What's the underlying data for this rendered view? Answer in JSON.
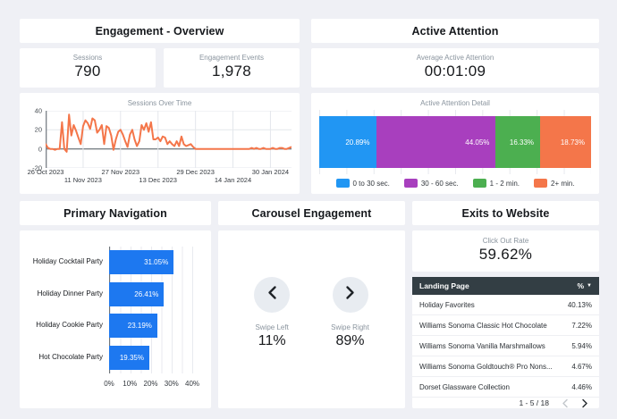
{
  "engagement_overview": {
    "title": "Engagement - Overview",
    "kpis": [
      {
        "label": "Sessions",
        "value": "790"
      },
      {
        "label": "Engagement Events",
        "value": "1,978"
      }
    ]
  },
  "active_attention": {
    "title": "Active Attention",
    "kpi": {
      "label": "Average Active Attention",
      "value": "00:01:09"
    }
  },
  "primary_navigation": {
    "title": "Primary Navigation"
  },
  "carousel": {
    "title": "Carousel Engagement",
    "left": {
      "label": "Swipe Left",
      "value": "11%"
    },
    "right": {
      "label": "Swipe Right",
      "value": "89%"
    }
  },
  "exits": {
    "title": "Exits to Website",
    "kpi": {
      "label": "Click Out Rate",
      "value": "59.62%"
    },
    "table": {
      "col_page": "Landing Page",
      "col_pct": "%",
      "sort_indicator": "▼",
      "rows": [
        [
          "Holiday Favorites",
          "40.13%"
        ],
        [
          "Williams Sonoma Classic Hot Chocolate",
          "7.22%"
        ],
        [
          "Williams Sonoma Vanilla Marshmallows",
          "5.94%"
        ],
        [
          "Williams Sonoma Goldtouch® Pro Nons...",
          "4.67%"
        ],
        [
          "Dorset Glassware Collection",
          "4.46%"
        ]
      ],
      "pagination": "1 - 5 / 18"
    }
  },
  "chart_data": [
    {
      "id": "sessions_over_time",
      "type": "line",
      "title": "Sessions Over Time",
      "color": "#F4764A",
      "ylim": [
        -20,
        40
      ],
      "yticks": [
        40,
        20,
        0,
        -20
      ],
      "xticks": [
        {
          "day": 0,
          "label": "26 Oct 2023",
          "row": 1
        },
        {
          "day": 16,
          "label": "11 Nov 2023",
          "row": 2
        },
        {
          "day": 32,
          "label": "27 Nov 2023",
          "row": 1
        },
        {
          "day": 48,
          "label": "13 Dec 2023",
          "row": 2
        },
        {
          "day": 64,
          "label": "29 Dec 2023",
          "row": 1
        },
        {
          "day": 80,
          "label": "14 Jan 2024",
          "row": 2
        },
        {
          "day": 96,
          "label": "30 Jan 2024",
          "row": 1
        }
      ],
      "values": [
        5,
        1,
        0,
        0,
        -1,
        0,
        0,
        28,
        0,
        -3,
        36,
        14,
        25,
        19,
        12,
        5,
        24,
        30,
        27,
        21,
        32,
        30,
        17,
        20,
        25,
        5,
        24,
        22,
        14,
        -1,
        10,
        18,
        20,
        15,
        8,
        2,
        15,
        20,
        10,
        3,
        8,
        25,
        20,
        27,
        18,
        28,
        10,
        10,
        12,
        8,
        13,
        12,
        5,
        8,
        5,
        3,
        8,
        3,
        13,
        5,
        3,
        4,
        5,
        2,
        0,
        0,
        0,
        0,
        0,
        0,
        0,
        0,
        0,
        0,
        0,
        0,
        0,
        0,
        0,
        0,
        0,
        0,
        0,
        0,
        0,
        0,
        0,
        0,
        1,
        0,
        1,
        0,
        0,
        1,
        0,
        0,
        0,
        1,
        0,
        0,
        1,
        1,
        0,
        0,
        1,
        2
      ]
    },
    {
      "id": "active_attention_detail",
      "type": "stacked_bar",
      "title": "Active Attention Detail",
      "segments": [
        {
          "label": "0 to 30 sec.",
          "value": 20.89,
          "pct_label": "20.89%",
          "color": "#2196F3"
        },
        {
          "label": "30 - 60 sec.",
          "value": 44.05,
          "pct_label": "44.05%",
          "color": "#A83FBE"
        },
        {
          "label": "1 - 2 min.",
          "value": 16.33,
          "pct_label": "16.33%",
          "color": "#4CAF50"
        },
        {
          "label": "2+ min.",
          "value": 18.73,
          "pct_label": "18.73%",
          "color": "#F4764A"
        }
      ]
    },
    {
      "id": "primary_navigation_bars",
      "type": "bar",
      "orientation": "horizontal",
      "color": "#1D78F0",
      "categories": [
        "Holiday Cocktail Party",
        "Holiday Dinner Party",
        "Holiday Cookie Party",
        "Hot Chocolate Party"
      ],
      "values": [
        31.05,
        26.41,
        23.19,
        19.35
      ],
      "value_labels": [
        "31.05%",
        "26.41%",
        "23.19%",
        "19.35%"
      ],
      "xmax": 43,
      "xticks": [
        {
          "value": 0,
          "label": "0%"
        },
        {
          "value": 10,
          "label": "10%"
        },
        {
          "value": 20,
          "label": "20%"
        },
        {
          "value": 30,
          "label": "30%"
        },
        {
          "value": 40,
          "label": "40%"
        }
      ]
    }
  ]
}
